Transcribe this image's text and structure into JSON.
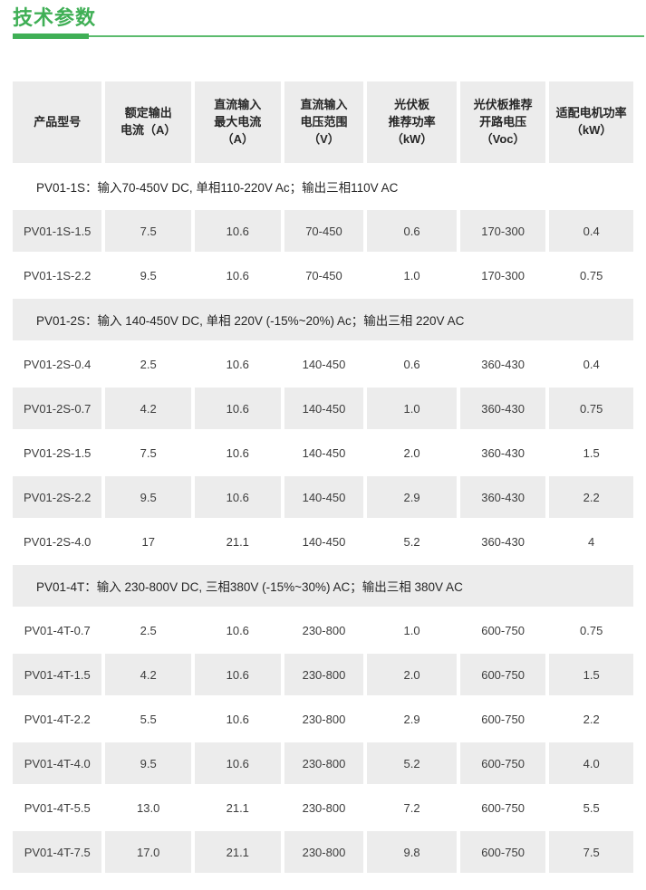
{
  "theme": {
    "accent_green": "#3FAF55",
    "cell_gray": "#ECECEC",
    "header_text": "#262626",
    "body_text": "#3D3D3D"
  },
  "title": "技术参数",
  "table": {
    "columns": [
      "产品型号",
      "额定输出\n电流（A）",
      "直流输入\n最大电流\n（A）",
      "直流输入\n电压范围\n（V）",
      "光伏板\n推荐功率\n（kW）",
      "光伏板推荐\n开路电压\n（Voc）",
      "适配电机功率\n（kW）"
    ],
    "rows": [
      {
        "type": "section",
        "label": "PV01-1S：输入70-450V DC, 单相110-220V Ac；输出三相110V AC"
      },
      {
        "type": "data",
        "cells": [
          "PV01-1S-1.5",
          "7.5",
          "10.6",
          "70-450",
          "0.6",
          "170-300",
          "0.4"
        ]
      },
      {
        "type": "data",
        "cells": [
          "PV01-1S-2.2",
          "9.5",
          "10.6",
          "70-450",
          "1.0",
          "170-300",
          "0.75"
        ]
      },
      {
        "type": "section",
        "label": "PV01-2S：输入 140-450V DC, 单相 220V (-15%~20%) Ac；输出三相 220V AC"
      },
      {
        "type": "data",
        "cells": [
          "PV01-2S-0.4",
          "2.5",
          "10.6",
          "140-450",
          "0.6",
          "360-430",
          "0.4"
        ]
      },
      {
        "type": "data",
        "cells": [
          "PV01-2S-0.7",
          "4.2",
          "10.6",
          "140-450",
          "1.0",
          "360-430",
          "0.75"
        ]
      },
      {
        "type": "data",
        "cells": [
          "PV01-2S-1.5",
          "7.5",
          "10.6",
          "140-450",
          "2.0",
          "360-430",
          "1.5"
        ]
      },
      {
        "type": "data",
        "cells": [
          "PV01-2S-2.2",
          "9.5",
          "10.6",
          "140-450",
          "2.9",
          "360-430",
          "2.2"
        ]
      },
      {
        "type": "data",
        "cells": [
          "PV01-2S-4.0",
          "17",
          "21.1",
          "140-450",
          "5.2",
          "360-430",
          "4"
        ]
      },
      {
        "type": "section",
        "label": "PV01-4T：输入 230-800V DC, 三相380V (-15%~30%) AC；输出三相 380V AC"
      },
      {
        "type": "data",
        "cells": [
          "PV01-4T-0.7",
          "2.5",
          "10.6",
          "230-800",
          "1.0",
          "600-750",
          "0.75"
        ]
      },
      {
        "type": "data",
        "cells": [
          "PV01-4T-1.5",
          "4.2",
          "10.6",
          "230-800",
          "2.0",
          "600-750",
          "1.5"
        ]
      },
      {
        "type": "data",
        "cells": [
          "PV01-4T-2.2",
          "5.5",
          "10.6",
          "230-800",
          "2.9",
          "600-750",
          "2.2"
        ]
      },
      {
        "type": "data",
        "cells": [
          "PV01-4T-4.0",
          "9.5",
          "10.6",
          "230-800",
          "5.2",
          "600-750",
          "4.0"
        ]
      },
      {
        "type": "data",
        "cells": [
          "PV01-4T-5.5",
          "13.0",
          "21.1",
          "230-800",
          "7.2",
          "600-750",
          "5.5"
        ]
      },
      {
        "type": "data",
        "cells": [
          "PV01-4T-7.5",
          "17.0",
          "21.1",
          "230-800",
          "9.8",
          "600-750",
          "7.5"
        ]
      }
    ]
  }
}
